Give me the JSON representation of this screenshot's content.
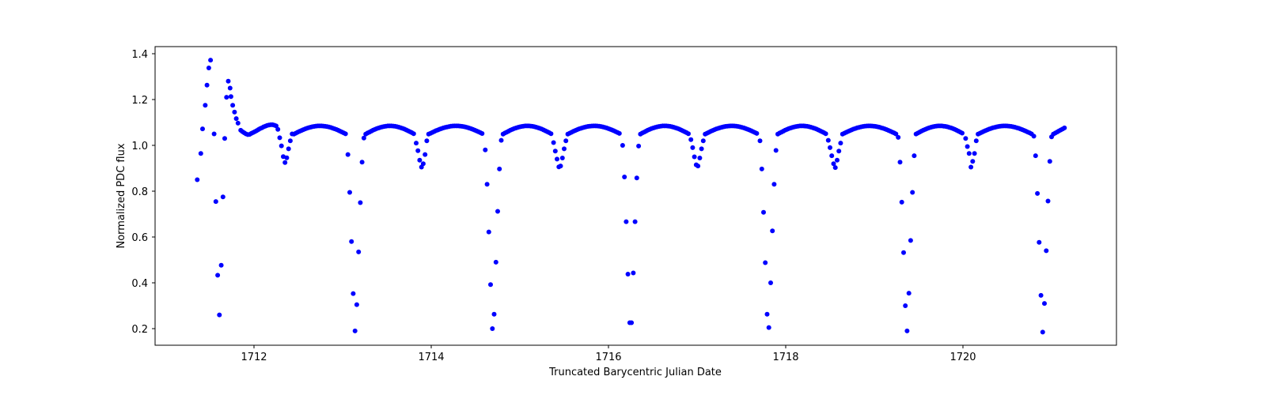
{
  "chart_data": {
    "type": "scatter",
    "title": "",
    "xlabel": "Truncated Barycentric Julian Date",
    "ylabel": "Normalized PDC flux",
    "xlim": [
      1710.8,
      1721.65
    ],
    "ylim": [
      0.13,
      1.43
    ],
    "xticks": [
      1712,
      1714,
      1716,
      1718,
      1720
    ],
    "xtick_labels": [
      "1712",
      "1714",
      "1716",
      "1718",
      "1720"
    ],
    "yticks": [
      0.2,
      0.4,
      0.6,
      0.8,
      1.0,
      1.2,
      1.4
    ],
    "ytick_labels": [
      "0.2",
      "0.4",
      "0.6",
      "0.8",
      "1.0",
      "1.2",
      "1.4"
    ],
    "grid": false,
    "legend": null,
    "marker_color": "#0000ff",
    "marker_size": 3,
    "series": [
      {
        "name": "PDC flux",
        "period_days": 1.548,
        "primary_eclipse_times": [
          1711.59,
          1713.15,
          1714.7,
          1716.25,
          1717.8,
          1719.35,
          1720.89
        ],
        "secondary_eclipse_times": [
          1712.37,
          1713.93,
          1715.47,
          1717.02,
          1718.57,
          1720.12
        ],
        "flare_points": [
          [
            1711.36,
            0.85
          ],
          [
            1711.4,
            0.965
          ],
          [
            1711.42,
            1.072
          ],
          [
            1711.45,
            1.175
          ],
          [
            1711.47,
            1.263
          ],
          [
            1711.49,
            1.338
          ],
          [
            1711.51,
            1.372
          ],
          [
            1711.55,
            1.05
          ],
          [
            1711.57,
            0.755
          ],
          [
            1711.59,
            0.433
          ],
          [
            1711.61,
            0.26
          ],
          [
            1711.63,
            0.477
          ],
          [
            1711.65,
            0.775
          ],
          [
            1711.67,
            1.03
          ],
          [
            1711.69,
            1.21
          ],
          [
            1711.71,
            1.28
          ],
          [
            1711.73,
            1.25
          ],
          [
            1711.74,
            1.213
          ],
          [
            1711.76,
            1.175
          ],
          [
            1711.78,
            1.145
          ],
          [
            1711.8,
            1.117
          ],
          [
            1711.82,
            1.097
          ],
          [
            1711.85,
            1.066
          ],
          [
            1711.87,
            1.06
          ],
          [
            1711.89,
            1.055
          ],
          [
            1711.91,
            1.05
          ],
          [
            1711.93,
            1.047
          ],
          [
            1711.95,
            1.048
          ],
          [
            1711.97,
            1.052
          ],
          [
            1711.99,
            1.056
          ],
          [
            1712.01,
            1.06
          ],
          [
            1712.03,
            1.064
          ],
          [
            1712.05,
            1.069
          ],
          [
            1712.07,
            1.073
          ],
          [
            1712.09,
            1.077
          ],
          [
            1712.11,
            1.081
          ],
          [
            1712.13,
            1.084
          ],
          [
            1712.15,
            1.087
          ],
          [
            1712.17,
            1.089
          ],
          [
            1712.19,
            1.09
          ],
          [
            1712.21,
            1.09
          ],
          [
            1712.23,
            1.088
          ],
          [
            1712.25,
            1.085
          ]
        ],
        "eclipse_points": [
          [
            1712.27,
            1.07
          ],
          [
            1712.29,
            1.033
          ],
          [
            1712.31,
            0.998
          ],
          [
            1712.33,
            0.951
          ],
          [
            1712.35,
            0.925
          ],
          [
            1712.37,
            0.946
          ],
          [
            1712.39,
            0.985
          ],
          [
            1712.41,
            1.02
          ],
          [
            1712.43,
            1.05
          ],
          [
            1713.06,
            0.96
          ],
          [
            1713.08,
            0.795
          ],
          [
            1713.1,
            0.58
          ],
          [
            1713.12,
            0.353
          ],
          [
            1713.14,
            0.19
          ],
          [
            1713.16,
            0.305
          ],
          [
            1713.18,
            0.535
          ],
          [
            1713.2,
            0.75
          ],
          [
            1713.22,
            0.927
          ],
          [
            1713.24,
            1.032
          ],
          [
            1713.83,
            1.01
          ],
          [
            1713.85,
            0.977
          ],
          [
            1713.87,
            0.935
          ],
          [
            1713.89,
            0.905
          ],
          [
            1713.91,
            0.92
          ],
          [
            1713.93,
            0.96
          ],
          [
            1713.95,
            1.02
          ],
          [
            1714.61,
            0.98
          ],
          [
            1714.63,
            0.83
          ],
          [
            1714.65,
            0.622
          ],
          [
            1714.67,
            0.392
          ],
          [
            1714.69,
            0.2
          ],
          [
            1714.71,
            0.263
          ],
          [
            1714.73,
            0.49
          ],
          [
            1714.75,
            0.712
          ],
          [
            1714.77,
            0.897
          ],
          [
            1714.79,
            1.022
          ],
          [
            1715.38,
            1.012
          ],
          [
            1715.4,
            0.975
          ],
          [
            1715.42,
            0.94
          ],
          [
            1715.44,
            0.906
          ],
          [
            1715.46,
            0.91
          ],
          [
            1715.48,
            0.945
          ],
          [
            1715.5,
            0.985
          ],
          [
            1715.52,
            1.02
          ],
          [
            1716.16,
            1.0
          ],
          [
            1716.18,
            0.862
          ],
          [
            1716.2,
            0.667
          ],
          [
            1716.22,
            0.438
          ],
          [
            1716.24,
            0.226
          ],
          [
            1716.26,
            0.226
          ],
          [
            1716.28,
            0.443
          ],
          [
            1716.3,
            0.667
          ],
          [
            1716.32,
            0.858
          ],
          [
            1716.34,
            0.997
          ],
          [
            1716.93,
            1.025
          ],
          [
            1716.95,
            0.99
          ],
          [
            1716.97,
            0.95
          ],
          [
            1716.99,
            0.915
          ],
          [
            1717.01,
            0.91
          ],
          [
            1717.03,
            0.945
          ],
          [
            1717.05,
            0.985
          ],
          [
            1717.07,
            1.02
          ],
          [
            1717.71,
            1.02
          ],
          [
            1717.73,
            0.897
          ],
          [
            1717.75,
            0.708
          ],
          [
            1717.77,
            0.488
          ],
          [
            1717.79,
            0.263
          ],
          [
            1717.81,
            0.205
          ],
          [
            1717.83,
            0.4
          ],
          [
            1717.85,
            0.627
          ],
          [
            1717.87,
            0.83
          ],
          [
            1717.89,
            0.978
          ],
          [
            1718.48,
            1.022
          ],
          [
            1718.5,
            0.99
          ],
          [
            1718.52,
            0.955
          ],
          [
            1718.54,
            0.92
          ],
          [
            1718.56,
            0.903
          ],
          [
            1718.58,
            0.935
          ],
          [
            1718.6,
            0.975
          ],
          [
            1718.62,
            1.01
          ],
          [
            1719.27,
            1.035
          ],
          [
            1719.29,
            0.927
          ],
          [
            1719.31,
            0.752
          ],
          [
            1719.33,
            0.532
          ],
          [
            1719.35,
            0.3
          ],
          [
            1719.37,
            0.19
          ],
          [
            1719.39,
            0.355
          ],
          [
            1719.41,
            0.585
          ],
          [
            1719.43,
            0.795
          ],
          [
            1719.45,
            0.955
          ],
          [
            1720.03,
            1.03
          ],
          [
            1720.05,
            0.995
          ],
          [
            1720.07,
            0.965
          ],
          [
            1720.09,
            0.905
          ],
          [
            1720.11,
            0.93
          ],
          [
            1720.13,
            0.965
          ],
          [
            1720.15,
            1.02
          ],
          [
            1720.8,
            1.04
          ],
          [
            1720.82,
            0.955
          ],
          [
            1720.84,
            0.79
          ],
          [
            1720.86,
            0.577
          ],
          [
            1720.88,
            0.345
          ],
          [
            1720.9,
            0.185
          ],
          [
            1720.92,
            0.31
          ],
          [
            1720.94,
            0.54
          ],
          [
            1720.96,
            0.757
          ],
          [
            1720.98,
            0.93
          ],
          [
            1721.0,
            1.037
          ]
        ],
        "baseline": {
          "description": "Out-of-eclipse arcs between dips, peaking near 1.085 midway between primary and secondary eclipses and falling to ~1.04–1.05 at dip edges",
          "peak_value": 1.085,
          "edge_value": 1.045,
          "cadence_days": 0.0208,
          "end_time": 1721.18,
          "end_value": 1.077
        }
      }
    ]
  }
}
